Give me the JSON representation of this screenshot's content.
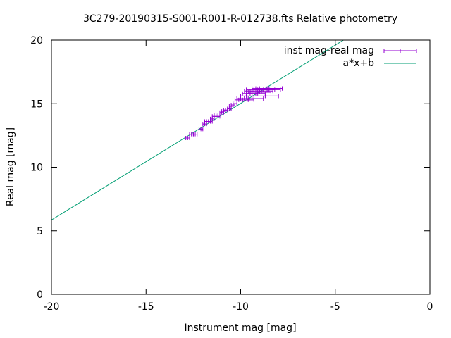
{
  "chart_data": {
    "type": "scatter",
    "title": "3C279-20190315-S001-R001-R-012738.fts Relative photometry",
    "xlabel": "Instrument mag [mag]",
    "ylabel": "Real mag [mag]",
    "xlim": [
      -20,
      0
    ],
    "ylim": [
      0,
      20
    ],
    "x_ticks": [
      "-20",
      "-15",
      "-10",
      "-5",
      "0"
    ],
    "y_ticks": [
      "0",
      "5",
      "10",
      "15",
      "20"
    ],
    "legend_position": "top-right",
    "grid": false,
    "series": [
      {
        "name": "inst mag-real mag",
        "color": "#9400d3",
        "points": [
          {
            "x": -12.8,
            "y": 12.3,
            "xerr": 0.1
          },
          {
            "x": -12.6,
            "y": 12.6,
            "xerr": 0.1
          },
          {
            "x": -12.4,
            "y": 12.6,
            "xerr": 0.1
          },
          {
            "x": -12.1,
            "y": 13.0,
            "xerr": 0.1
          },
          {
            "x": -11.9,
            "y": 13.4,
            "xerr": 0.1
          },
          {
            "x": -11.8,
            "y": 13.6,
            "xerr": 0.1
          },
          {
            "x": -11.6,
            "y": 13.6,
            "xerr": 0.1
          },
          {
            "x": -11.5,
            "y": 13.8,
            "xerr": 0.1
          },
          {
            "x": -11.4,
            "y": 14.0,
            "xerr": 0.1
          },
          {
            "x": -11.3,
            "y": 14.1,
            "xerr": 0.1
          },
          {
            "x": -11.2,
            "y": 14.0,
            "xerr": 0.1
          },
          {
            "x": -11.0,
            "y": 14.3,
            "xerr": 0.1
          },
          {
            "x": -10.9,
            "y": 14.4,
            "xerr": 0.1
          },
          {
            "x": -10.8,
            "y": 14.5,
            "xerr": 0.1
          },
          {
            "x": -10.6,
            "y": 14.6,
            "xerr": 0.1
          },
          {
            "x": -10.5,
            "y": 14.8,
            "xerr": 0.1
          },
          {
            "x": -10.4,
            "y": 14.9,
            "xerr": 0.1
          },
          {
            "x": -10.3,
            "y": 15.0,
            "xerr": 0.1
          },
          {
            "x": -10.1,
            "y": 15.3,
            "xerr": 0.2
          },
          {
            "x": -10.0,
            "y": 15.4,
            "xerr": 0.2
          },
          {
            "x": -9.8,
            "y": 15.4,
            "xerr": 0.2
          },
          {
            "x": -9.7,
            "y": 15.6,
            "xerr": 0.3
          },
          {
            "x": -9.6,
            "y": 15.3,
            "xerr": 0.3
          },
          {
            "x": -9.5,
            "y": 15.8,
            "xerr": 0.4
          },
          {
            "x": -9.4,
            "y": 16.0,
            "xerr": 0.4
          },
          {
            "x": -9.3,
            "y": 15.4,
            "xerr": 0.5
          },
          {
            "x": -9.2,
            "y": 15.8,
            "xerr": 0.5
          },
          {
            "x": -9.1,
            "y": 16.1,
            "xerr": 0.6
          },
          {
            "x": -9.0,
            "y": 15.9,
            "xerr": 0.6
          },
          {
            "x": -8.9,
            "y": 16.0,
            "xerr": 0.6
          },
          {
            "x": -8.8,
            "y": 16.1,
            "xerr": 0.6
          },
          {
            "x": -8.7,
            "y": 15.6,
            "xerr": 0.7
          },
          {
            "x": -8.6,
            "y": 16.1,
            "xerr": 0.7
          },
          {
            "x": -8.5,
            "y": 16.2,
            "xerr": 0.7
          },
          {
            "x": -8.4,
            "y": 16.2,
            "xerr": 0.6
          },
          {
            "x": -8.6,
            "y": 16.2,
            "xerr": 0.8
          }
        ]
      },
      {
        "name": "a*x+b",
        "color": "#009e73",
        "type": "line",
        "line": {
          "a": 0.917,
          "b": 24.19
        }
      }
    ]
  }
}
